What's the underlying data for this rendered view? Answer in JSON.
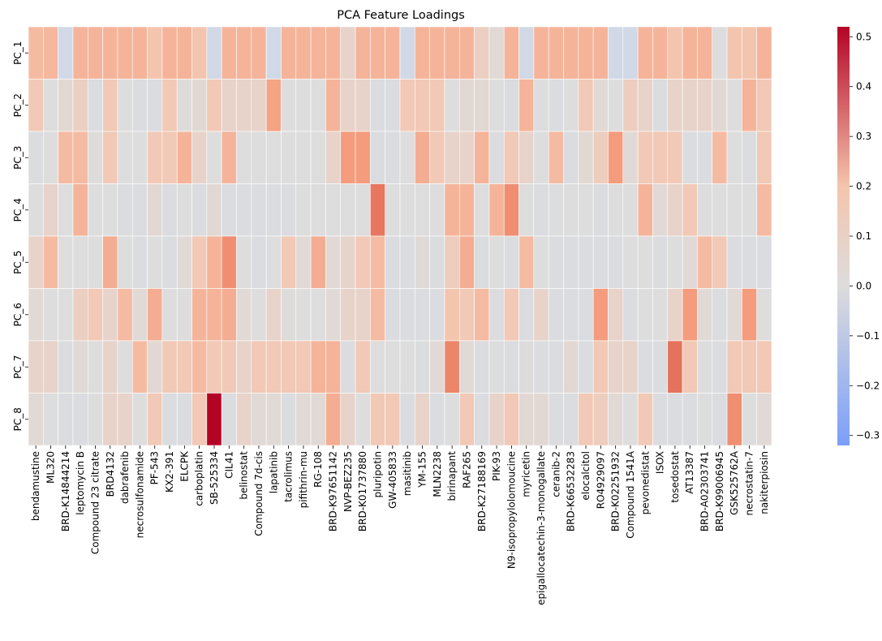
{
  "chart_data": {
    "type": "heatmap",
    "title": "PCA Feature Loadings",
    "xlabel": "",
    "ylabel": "",
    "rows": [
      "PC_1",
      "PC_2",
      "PC_3",
      "PC_4",
      "PC_5",
      "PC_6",
      "PC_7",
      "PC_8"
    ],
    "columns": [
      "bendamustine",
      "ML320",
      "BRD-K14844214",
      "leptomycin B",
      "Compound 23 citrate",
      "BRD4132",
      "dabrafenib",
      "necrosulfonamide",
      "PF-543",
      "KX2-391",
      "ELCPK",
      "carboplatin",
      "SB-525334",
      "CIL41",
      "belinostat",
      "Compound 7d-cis",
      "lapatinib",
      "tacrolimus",
      "pifithrin-mu",
      "RG-108",
      "BRD-K97651142",
      "NVP-BEZ235",
      "BRD-K01737880",
      "pluripotin",
      "GW-405833",
      "masitinib",
      "YM-155",
      "MLN2238",
      "birinapant",
      "RAF265",
      "BRD-K27188169",
      "PIK-93",
      "N9-isopropylolomoucine",
      "myricetin",
      "epigallocatechin-3-monogallate",
      "ceranib-2",
      "BRD-K66532283",
      "elocalcitol",
      "RO4929097",
      "BRD-K02251932",
      "Compound 1541A",
      "pevonedistat",
      "ISOX",
      "tosedostat",
      "AT13387",
      "BRD-A02303741",
      "BRD-K99006945",
      "GSK525762A",
      "necrostatin-7",
      "nakiterpiosin"
    ],
    "values": [
      [
        0.18,
        0.19,
        -0.02,
        0.2,
        0.2,
        0.2,
        0.2,
        0.2,
        0.15,
        0.2,
        0.2,
        0.15,
        -0.02,
        0.2,
        0.2,
        0.2,
        -0.02,
        0.2,
        0.2,
        0.2,
        0.2,
        0.08,
        0.2,
        0.2,
        0.2,
        -0.02,
        0.2,
        0.2,
        0.2,
        0.2,
        0.1,
        0.05,
        0.2,
        -0.02,
        0.2,
        0.2,
        0.2,
        0.2,
        0.2,
        -0.02,
        -0.02,
        0.2,
        0.2,
        0.15,
        0.2,
        0.2,
        -0.1,
        0.15,
        0.15,
        0.2
      ],
      [
        0.13,
        -0.15,
        -0.2,
        0.1,
        -0.05,
        0.13,
        -0.1,
        -0.05,
        -0.05,
        0.13,
        -0.18,
        -0.2,
        0.13,
        0.08,
        0.08,
        0.08,
        0.25,
        -0.15,
        -0.15,
        -0.15,
        0.2,
        0.08,
        0.08,
        -0.05,
        -0.05,
        0.13,
        0.13,
        0.13,
        -0.1,
        -0.2,
        -0.2,
        -0.1,
        -0.05,
        0.2,
        -0.1,
        -0.05,
        -0.1,
        0.13,
        0.05,
        -0.15,
        -0.25,
        0.08,
        -0.05,
        0.08,
        0.08,
        -0.22,
        -0.2,
        -0.15,
        0.2,
        0.13
      ],
      [
        -0.05,
        -0.1,
        0.18,
        0.18,
        -0.18,
        0.13,
        -0.15,
        -0.15,
        0.13,
        0.13,
        0.2,
        0.08,
        -0.1,
        0.2,
        -0.1,
        -0.1,
        -0.1,
        -0.1,
        -0.1,
        -0.1,
        0.08,
        0.27,
        0.27,
        -0.05,
        -0.05,
        -0.15,
        0.22,
        0.13,
        0.08,
        0.08,
        0.2,
        -0.05,
        0.13,
        0.08,
        -0.1,
        0.18,
        -0.05,
        -0.2,
        -0.25,
        0.27,
        0.05,
        0.13,
        0.13,
        0.13,
        -0.05,
        -0.05,
        0.18,
        -0.1,
        -0.05,
        0.13
      ],
      [
        0.02,
        0.08,
        -0.15,
        0.2,
        0.02,
        -0.1,
        -0.05,
        -0.05,
        -0.2,
        -0.05,
        0.02,
        -0.05,
        -0.2,
        -0.05,
        -0.05,
        -0.05,
        -0.05,
        -0.05,
        -0.1,
        -0.1,
        -0.1,
        -0.1,
        -0.1,
        0.35,
        -0.1,
        -0.15,
        -0.15,
        -0.1,
        0.2,
        0.2,
        -0.1,
        0.2,
        0.3,
        -0.15,
        -0.05,
        -0.1,
        -0.1,
        -0.1,
        -0.05,
        -0.15,
        -0.15,
        0.2,
        0.05,
        0.08,
        0.13,
        0.02,
        0.02,
        0.02,
        -0.1,
        0.18
      ],
      [
        0.08,
        0.18,
        -0.1,
        -0.1,
        -0.1,
        0.22,
        -0.1,
        -0.05,
        -0.1,
        -0.05,
        0.05,
        0.13,
        0.2,
        0.3,
        -0.15,
        -0.05,
        -0.15,
        0.13,
        0.05,
        0.22,
        0.05,
        -0.22,
        0.13,
        0.18,
        -0.05,
        -0.05,
        0.05,
        -0.05,
        -0.25,
        0.22,
        -0.05,
        -0.15,
        -0.05,
        0.18,
        -0.1,
        -0.05,
        -0.05,
        -0.05,
        -0.05,
        -0.05,
        0.02,
        0.02,
        -0.05,
        -0.15,
        0.05,
        0.18,
        0.13,
        -0.05,
        -0.05,
        -0.05
      ],
      [
        0.05,
        0.02,
        -0.15,
        0.1,
        0.13,
        0.08,
        0.18,
        0.05,
        0.22,
        -0.1,
        -0.1,
        0.2,
        0.2,
        0.22,
        0.05,
        -0.1,
        0.08,
        -0.18,
        -0.15,
        -0.15,
        0.05,
        0.08,
        0.08,
        0.18,
        -0.05,
        -0.05,
        -0.05,
        -0.05,
        0.15,
        0.13,
        0.18,
        -0.05,
        0.13,
        -0.05,
        0.08,
        -0.05,
        -0.05,
        -0.05,
        0.27,
        0.08,
        -0.05,
        0.02,
        0.02,
        0.08,
        0.27,
        0.05,
        -0.05,
        0.05,
        0.27,
        -0.15
      ],
      [
        0.08,
        0.08,
        -0.05,
        0.05,
        -0.1,
        0.08,
        -0.1,
        0.18,
        -0.2,
        0.13,
        0.13,
        0.18,
        0.13,
        0.13,
        0.08,
        0.13,
        0.13,
        0.13,
        0.13,
        0.2,
        0.2,
        -0.05,
        0.13,
        -0.1,
        -0.15,
        -0.1,
        -0.05,
        0.05,
        0.32,
        0.05,
        -0.05,
        -0.1,
        -0.05,
        -0.18,
        -0.05,
        -0.05,
        -0.2,
        -0.05,
        0.13,
        0.08,
        0.08,
        -0.05,
        -0.05,
        0.36,
        0.13,
        -0.1,
        -0.05,
        0.13,
        0.13,
        0.13
      ],
      [
        0.05,
        -0.15,
        -0.05,
        -0.05,
        0.02,
        0.08,
        0.08,
        -0.15,
        0.13,
        -0.05,
        -0.05,
        0.13,
        0.52,
        -0.05,
        0.08,
        0.05,
        0.05,
        -0.05,
        0.05,
        0.05,
        0.22,
        0.08,
        -0.15,
        0.13,
        0.13,
        -0.05,
        0.08,
        -0.05,
        -0.1,
        0.13,
        -0.05,
        0.08,
        0.13,
        -0.2,
        -0.2,
        -0.05,
        -0.05,
        0.13,
        -0.25,
        0.05,
        -0.1,
        0.13,
        -0.05,
        -0.05,
        -0.05,
        -0.1,
        -0.05,
        0.3,
        -0.15,
        0.05
      ]
    ],
    "vmin": -0.32,
    "vmax": 0.52,
    "colormap": "coolwarm",
    "colorbar_ticks": [
      0.5,
      0.4,
      0.3,
      0.2,
      0.1,
      0.0,
      -0.1,
      -0.2,
      -0.3
    ],
    "colorbar_tick_labels": [
      "0.5",
      "0.4",
      "0.3",
      "0.2",
      "0.1",
      "0.0",
      "−0.1",
      "−0.2",
      "−0.3"
    ]
  }
}
